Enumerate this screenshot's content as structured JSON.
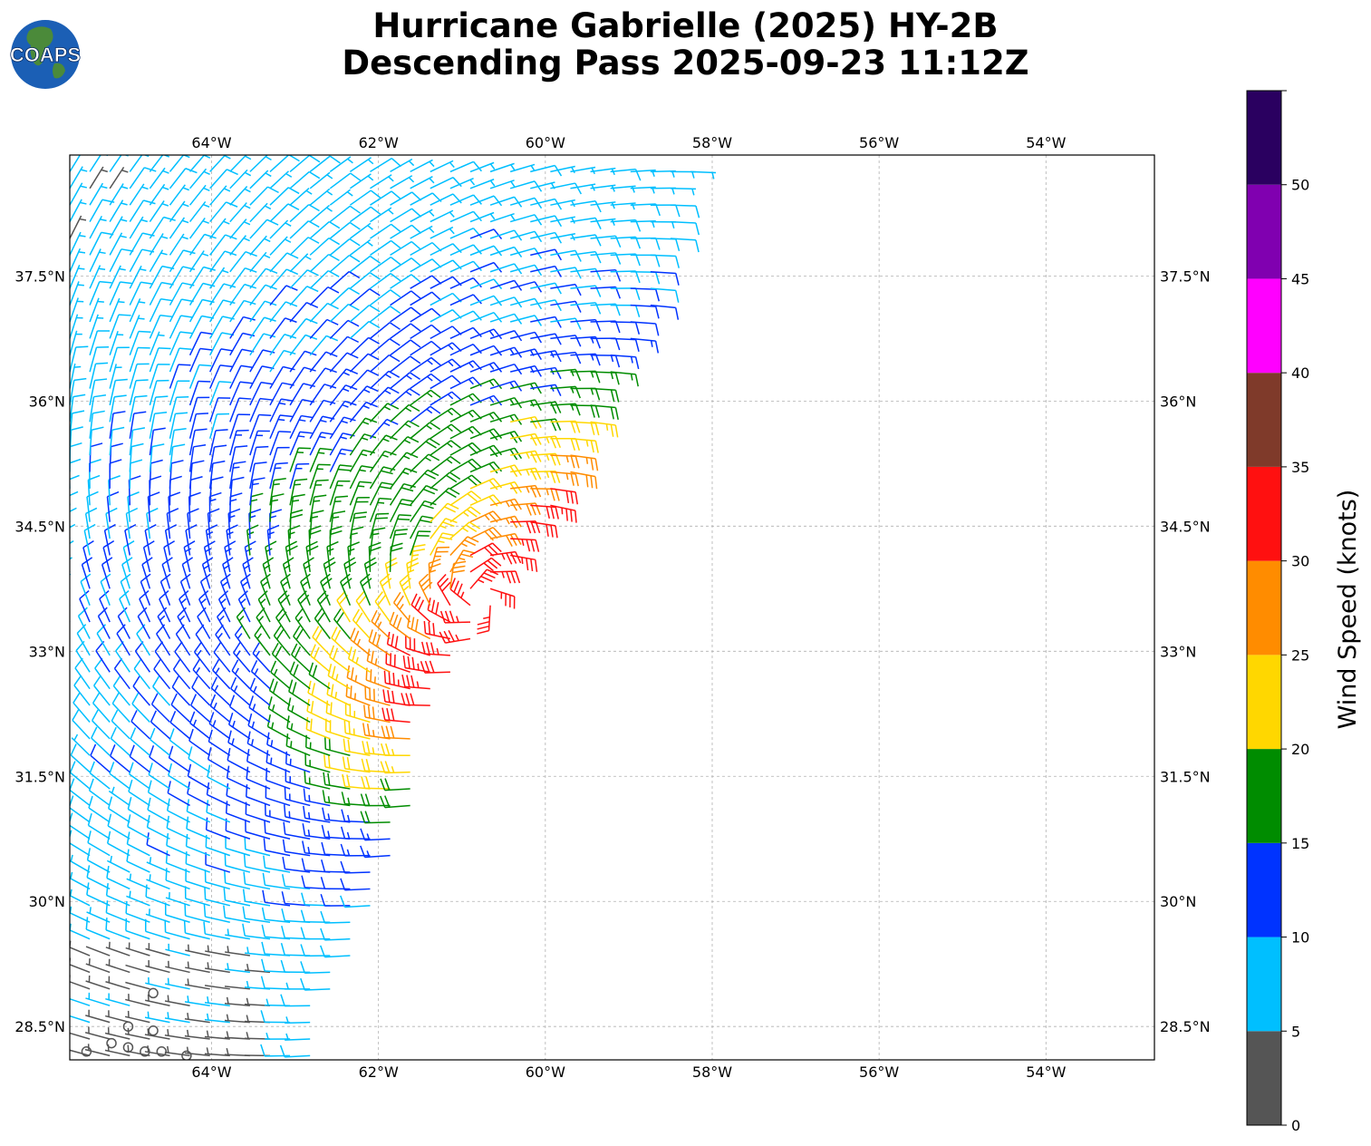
{
  "logo": {
    "text": "COAPS",
    "icon": "globe-logo"
  },
  "title": {
    "line1": "Hurricane Gabrielle (2025) HY-2B",
    "line2": "Descending Pass 2025-09-23 11:12Z"
  },
  "map": {
    "lon_range": [
      -65.7,
      -52.7
    ],
    "lat_range": [
      28.1,
      38.95
    ],
    "lon_ticks": [
      {
        "value": -64,
        "label": "64°W"
      },
      {
        "value": -62,
        "label": "62°W"
      },
      {
        "value": -60,
        "label": "60°W"
      },
      {
        "value": -58,
        "label": "58°W"
      },
      {
        "value": -56,
        "label": "56°W"
      },
      {
        "value": -54,
        "label": "54°W"
      }
    ],
    "lat_ticks": [
      {
        "value": 37.5,
        "label": "37.5°N"
      },
      {
        "value": 36,
        "label": "36°N"
      },
      {
        "value": 34.5,
        "label": "34.5°N"
      },
      {
        "value": 33,
        "label": "33°N"
      },
      {
        "value": 31.5,
        "label": "31.5°N"
      },
      {
        "value": 30,
        "label": "30°N"
      },
      {
        "value": 28.5,
        "label": "28.5°N"
      }
    ],
    "grid": true,
    "swath": {
      "center": [
        -60.8,
        33.6
      ],
      "edge_points": [
        [
          -58.2,
          38.9
        ],
        [
          -58.7,
          37.2
        ],
        [
          -59.4,
          36.0
        ],
        [
          -59.6,
          35.1
        ],
        [
          -60.4,
          34.1
        ],
        [
          -60.8,
          33.2
        ],
        [
          -61.0,
          33.0
        ],
        [
          -61.4,
          32.2
        ],
        [
          -61.5,
          31.5
        ],
        [
          -61.9,
          30.3
        ],
        [
          -62.1,
          29.8
        ],
        [
          -62.8,
          28.3
        ]
      ],
      "calm_points": [
        [
          -65.5,
          28.2
        ],
        [
          -65.2,
          28.3
        ],
        [
          -65.0,
          28.25
        ],
        [
          -64.8,
          28.2
        ],
        [
          -64.6,
          28.2
        ],
        [
          -64.3,
          28.15
        ],
        [
          -65.0,
          28.5
        ],
        [
          -64.7,
          28.45
        ],
        [
          -64.7,
          28.9
        ]
      ]
    }
  },
  "colorbar": {
    "label": "Wind Speed (knots)",
    "min": 0,
    "max": 55,
    "bins": [
      {
        "from": 0,
        "to": 5,
        "color": "#555555"
      },
      {
        "from": 5,
        "to": 10,
        "color": "#00bfff"
      },
      {
        "from": 10,
        "to": 15,
        "color": "#0033ff"
      },
      {
        "from": 15,
        "to": 20,
        "color": "#008c00"
      },
      {
        "from": 20,
        "to": 25,
        "color": "#ffd700"
      },
      {
        "from": 25,
        "to": 30,
        "color": "#ff8c00"
      },
      {
        "from": 30,
        "to": 35,
        "color": "#ff1010"
      },
      {
        "from": 35,
        "to": 40,
        "color": "#7f3a2a"
      },
      {
        "from": 40,
        "to": 45,
        "color": "#ff00ff"
      },
      {
        "from": 45,
        "to": 50,
        "color": "#8000b0"
      },
      {
        "from": 50,
        "to": 55,
        "color": "#2a0060"
      }
    ],
    "ticks": [
      "0",
      "5",
      "10",
      "15",
      "20",
      "25",
      "30",
      "35",
      "40",
      "45",
      "50"
    ]
  }
}
